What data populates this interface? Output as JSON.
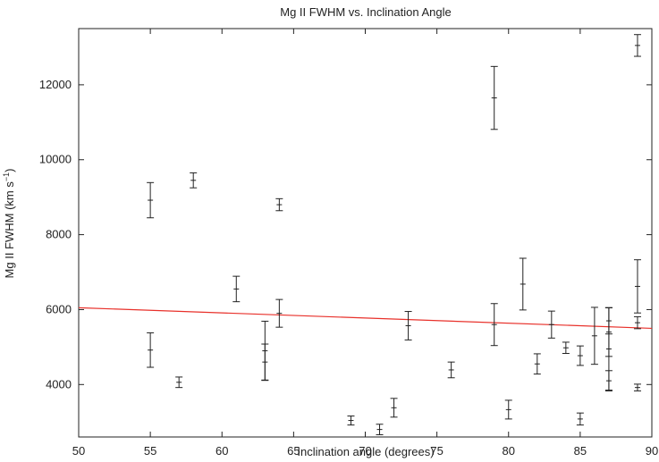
{
  "chart_data": {
    "type": "scatter",
    "title": "Mg II FWHM vs. Inclination Angle",
    "xlabel": "Inclination angle (degrees)",
    "ylabel_main": "Mg II FWHM (km s",
    "ylabel_sup": "−1",
    "ylabel_close": ")",
    "xlim": [
      50,
      90
    ],
    "ylim": [
      2600,
      13500
    ],
    "x_ticks": [
      50,
      55,
      60,
      65,
      70,
      75,
      80,
      85,
      90
    ],
    "y_ticks": [
      4000,
      6000,
      8000,
      10000,
      12000
    ],
    "grid": false,
    "legend": "none",
    "colors": {
      "points": "#222222",
      "fit": "#e8302a",
      "axes": "#222222"
    },
    "points": [
      {
        "x": 55,
        "y": 8920,
        "err": 470
      },
      {
        "x": 55,
        "y": 4920,
        "err": 460
      },
      {
        "x": 57,
        "y": 4060,
        "err": 140
      },
      {
        "x": 58,
        "y": 9450,
        "err": 200
      },
      {
        "x": 61,
        "y": 6550,
        "err": 340
      },
      {
        "x": 63,
        "y": 4900,
        "err": 790
      },
      {
        "x": 63,
        "y": 4600,
        "err": 480
      },
      {
        "x": 64,
        "y": 8800,
        "err": 160
      },
      {
        "x": 64,
        "y": 5900,
        "err": 370
      },
      {
        "x": 69,
        "y": 3040,
        "err": 120
      },
      {
        "x": 71,
        "y": 2800,
        "err": 140
      },
      {
        "x": 72,
        "y": 3380,
        "err": 250
      },
      {
        "x": 73,
        "y": 5570,
        "err": 380
      },
      {
        "x": 76,
        "y": 4390,
        "err": 210
      },
      {
        "x": 79,
        "y": 11650,
        "err": 840
      },
      {
        "x": 79,
        "y": 5600,
        "err": 560
      },
      {
        "x": 80,
        "y": 3330,
        "err": 250
      },
      {
        "x": 81,
        "y": 6680,
        "err": 690
      },
      {
        "x": 82,
        "y": 4550,
        "err": 270
      },
      {
        "x": 83,
        "y": 5600,
        "err": 360
      },
      {
        "x": 84,
        "y": 4980,
        "err": 150
      },
      {
        "x": 85,
        "y": 4770,
        "err": 260
      },
      {
        "x": 85,
        "y": 3080,
        "err": 160
      },
      {
        "x": 86,
        "y": 5300,
        "err": 760
      },
      {
        "x": 87,
        "y": 5700,
        "err": 350
      },
      {
        "x": 87,
        "y": 5400,
        "err": 650
      },
      {
        "x": 87,
        "y": 4950,
        "err": 1100
      },
      {
        "x": 87,
        "y": 4100,
        "err": 270
      },
      {
        "x": 89,
        "y": 13050,
        "err": 290
      },
      {
        "x": 89,
        "y": 6620,
        "err": 710
      },
      {
        "x": 89,
        "y": 5650,
        "err": 160
      },
      {
        "x": 89,
        "y": 3920,
        "err": 90
      }
    ],
    "fit_line": {
      "x": [
        50,
        90
      ],
      "y": [
        6050,
        5500
      ]
    }
  }
}
